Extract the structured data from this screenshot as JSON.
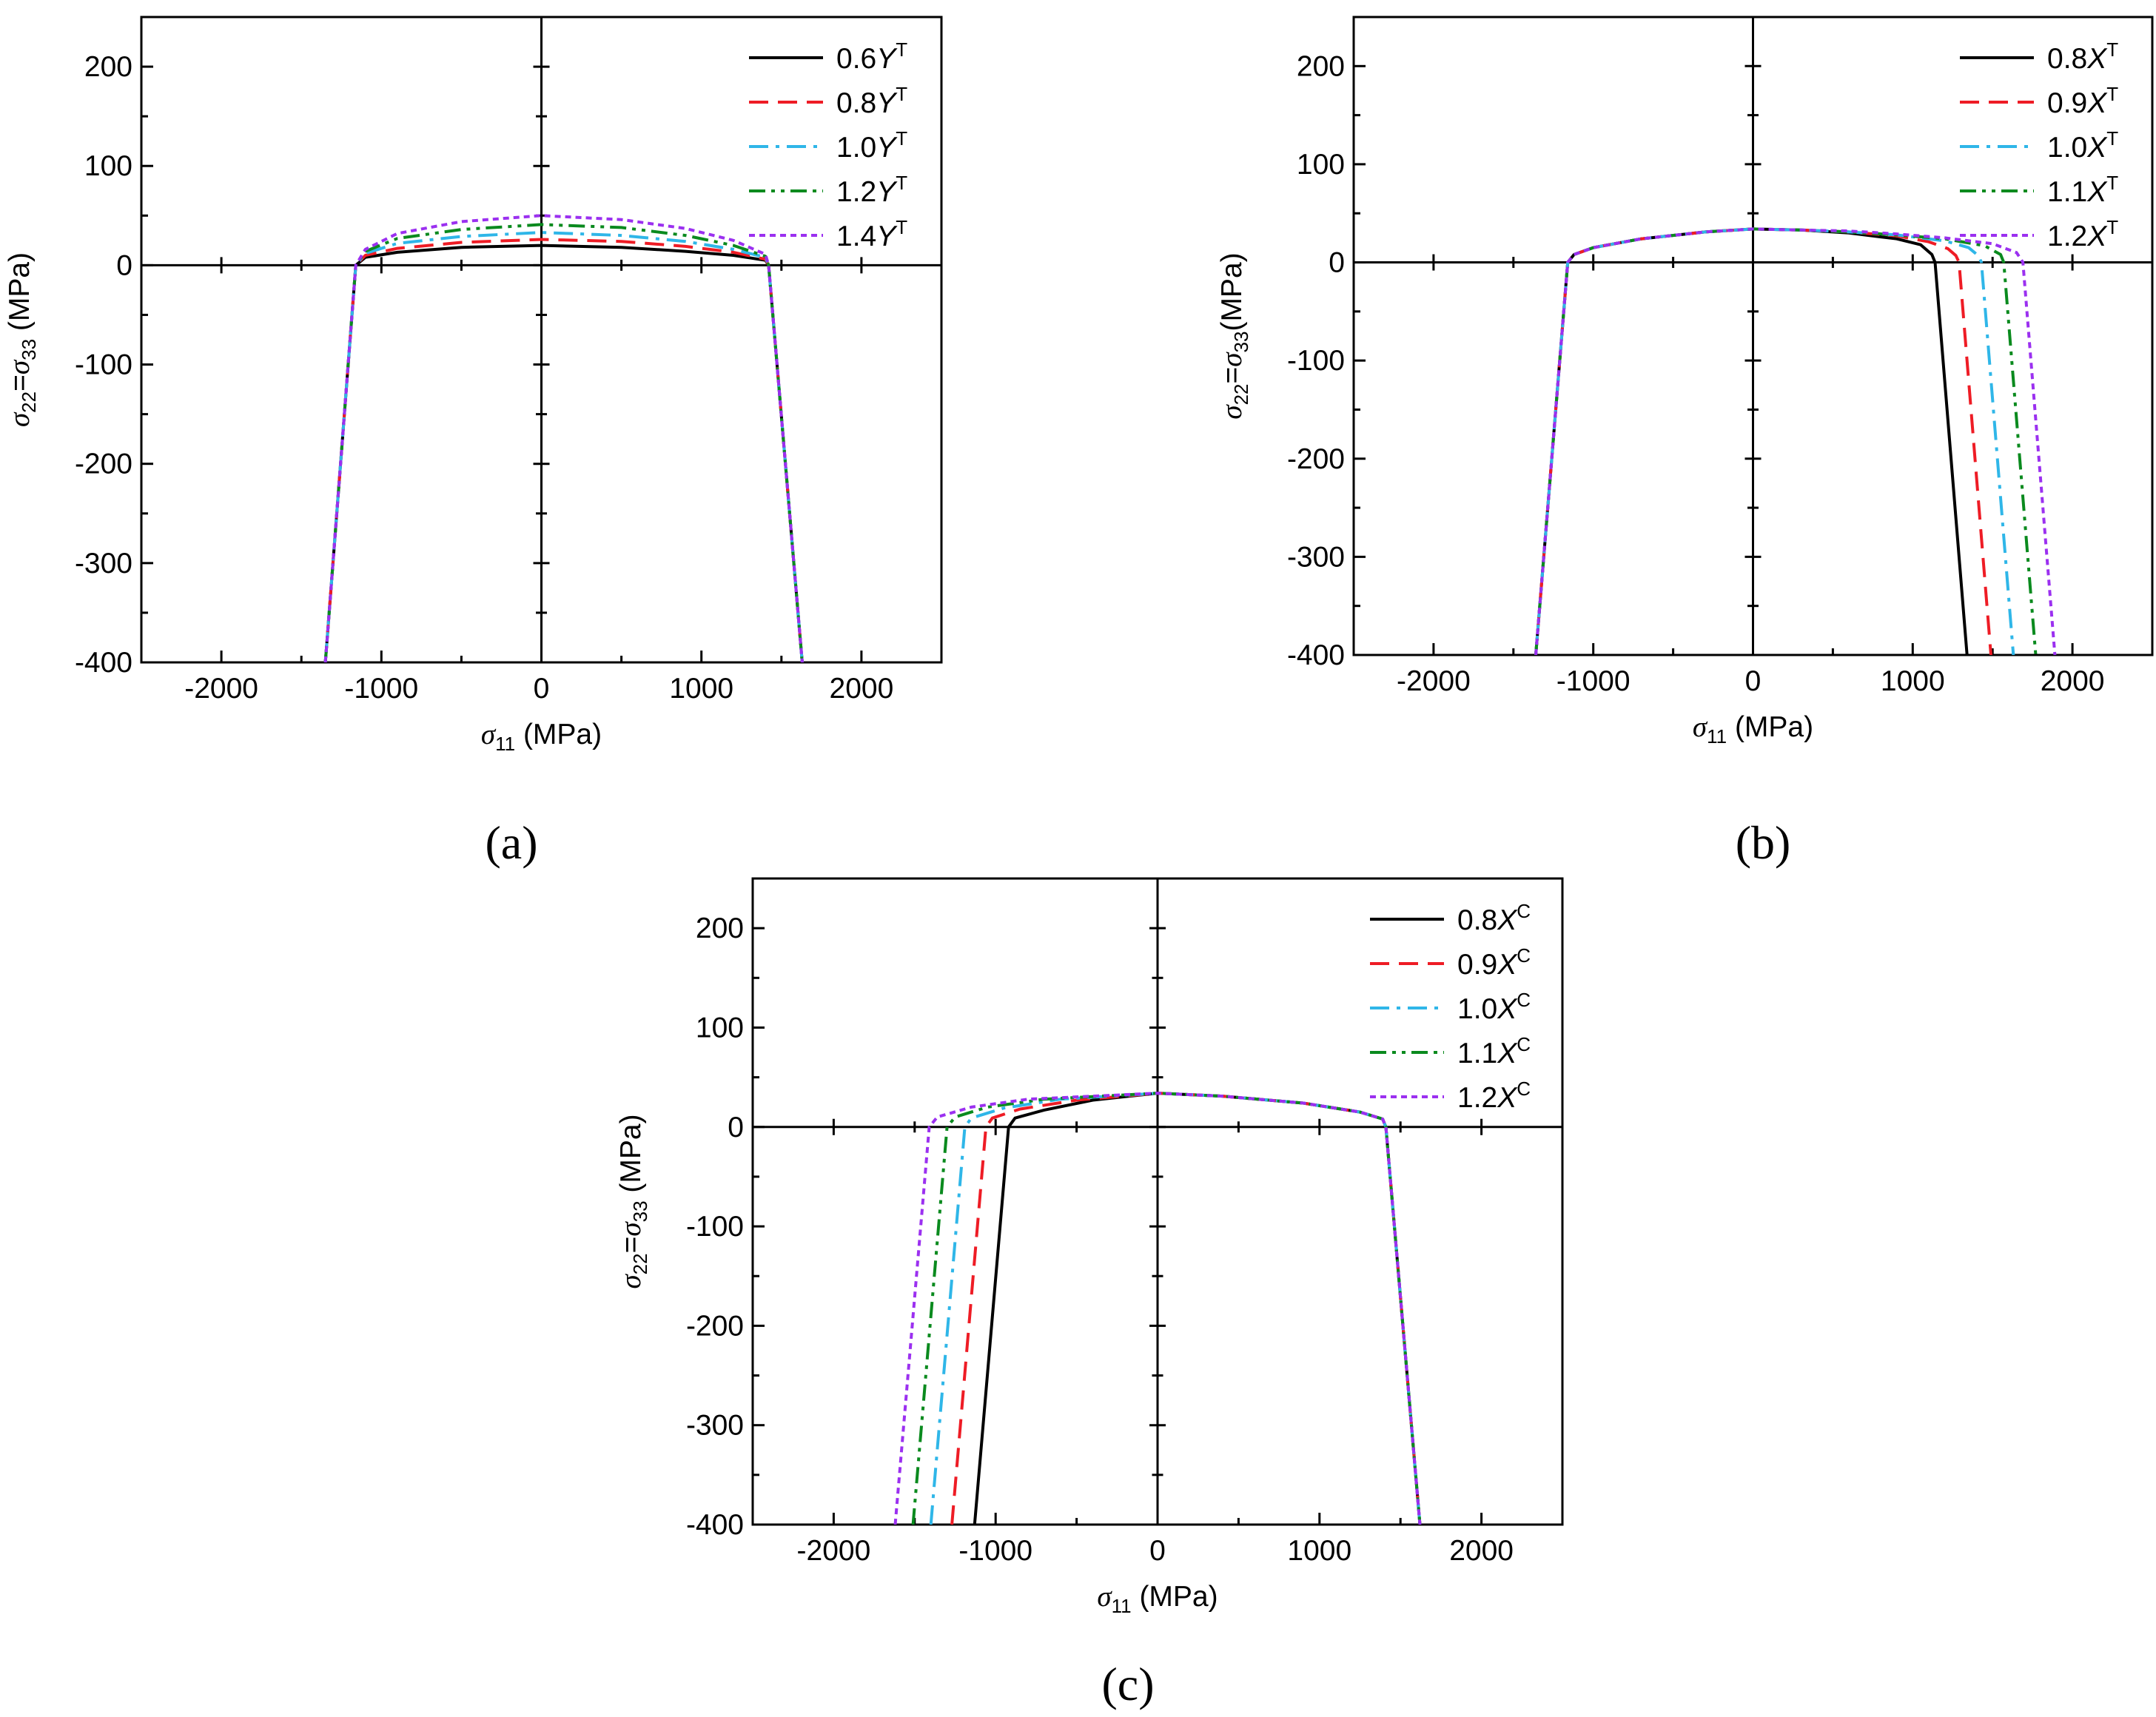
{
  "figure": {
    "colors": {
      "black": "#000000",
      "red": "#ee1c25",
      "cyan": "#2fb6e8",
      "green": "#0a8a1e",
      "purple": "#9b30f0"
    }
  },
  "chart_data": [
    {
      "id": "a",
      "type": "line",
      "caption": "(a)",
      "xlabel": {
        "sym": "σ",
        "sub": "11",
        "unit": " (MPa)"
      },
      "ylabel": {
        "s1": "σ",
        "sub1": "22",
        "eq": "=",
        "s2": "σ",
        "sub2": "33",
        "unit": " (MPa)"
      },
      "xlim": [
        -2500,
        2500
      ],
      "ylim": [
        -400,
        250
      ],
      "xticks": [
        -2000,
        -1000,
        0,
        1000,
        2000
      ],
      "xtick_labels": [
        "-2000",
        "-1000",
        "0",
        "1000",
        "2000"
      ],
      "yticks": [
        -400,
        -300,
        -200,
        -100,
        0,
        100,
        200
      ],
      "ytick_labels": [
        "-400",
        "-300",
        "-200",
        "-100",
        "0",
        "100",
        "200"
      ],
      "legend_position": "top-right",
      "series": [
        {
          "name": "0.6Y^T",
          "coef": "0.6",
          "letter": "Y",
          "sup": "T",
          "style": "solid",
          "color": "#000000",
          "points": [
            [
              -1350,
              -400
            ],
            [
              -1160,
              0
            ],
            [
              -1100,
              8
            ],
            [
              -900,
              13
            ],
            [
              -500,
              18
            ],
            [
              0,
              20
            ],
            [
              500,
              18
            ],
            [
              900,
              14
            ],
            [
              1200,
              10
            ],
            [
              1400,
              5
            ],
            [
              1420,
              0
            ],
            [
              1630,
              -400
            ]
          ]
        },
        {
          "name": "0.8Y^T",
          "coef": "0.8",
          "letter": "Y",
          "sup": "T",
          "style": "dash",
          "color": "#ee1c25",
          "points": [
            [
              -1350,
              -400
            ],
            [
              -1160,
              0
            ],
            [
              -1100,
              10
            ],
            [
              -900,
              17
            ],
            [
              -500,
              23
            ],
            [
              0,
              26
            ],
            [
              500,
              24
            ],
            [
              900,
              19
            ],
            [
              1200,
              13
            ],
            [
              1400,
              6
            ],
            [
              1420,
              0
            ],
            [
              1630,
              -400
            ]
          ]
        },
        {
          "name": "1.0Y^T",
          "coef": "1.0",
          "letter": "Y",
          "sup": "T",
          "style": "dashdot",
          "color": "#2fb6e8",
          "points": [
            [
              -1350,
              -400
            ],
            [
              -1160,
              0
            ],
            [
              -1100,
              12
            ],
            [
              -900,
              22
            ],
            [
              -500,
              29
            ],
            [
              0,
              33
            ],
            [
              500,
              30
            ],
            [
              900,
              24
            ],
            [
              1200,
              16
            ],
            [
              1400,
              8
            ],
            [
              1420,
              0
            ],
            [
              1630,
              -400
            ]
          ]
        },
        {
          "name": "1.2Y^T",
          "coef": "1.2",
          "letter": "Y",
          "sup": "T",
          "style": "dashdotdot",
          "color": "#0a8a1e",
          "points": [
            [
              -1350,
              -400
            ],
            [
              -1160,
              0
            ],
            [
              -1100,
              14
            ],
            [
              -900,
              27
            ],
            [
              -500,
              36
            ],
            [
              0,
              41
            ],
            [
              500,
              38
            ],
            [
              900,
              30
            ],
            [
              1200,
              20
            ],
            [
              1400,
              9
            ],
            [
              1420,
              0
            ],
            [
              1630,
              -400
            ]
          ]
        },
        {
          "name": "1.4Y^T",
          "coef": "1.4",
          "letter": "Y",
          "sup": "T",
          "style": "dot",
          "color": "#9b30f0",
          "points": [
            [
              -1350,
              -400
            ],
            [
              -1160,
              0
            ],
            [
              -1100,
              16
            ],
            [
              -900,
              32
            ],
            [
              -500,
              44
            ],
            [
              0,
              50
            ],
            [
              500,
              46
            ],
            [
              900,
              37
            ],
            [
              1200,
              25
            ],
            [
              1400,
              11
            ],
            [
              1420,
              0
            ],
            [
              1630,
              -400
            ]
          ]
        }
      ]
    },
    {
      "id": "b",
      "type": "line",
      "caption": "(b)",
      "xlabel": {
        "sym": "σ",
        "sub": "11",
        "unit": " (MPa)"
      },
      "ylabel": {
        "s1": "σ",
        "sub1": "22",
        "eq": "=",
        "s2": "σ",
        "sub2": "33",
        "unit": "(MPa)"
      },
      "xlim": [
        -2500,
        2500
      ],
      "ylim": [
        -400,
        250
      ],
      "xticks": [
        -2000,
        -1000,
        0,
        1000,
        2000
      ],
      "xtick_labels": [
        "-2000",
        "-1000",
        "0",
        "1000",
        "2000"
      ],
      "yticks": [
        -400,
        -300,
        -200,
        -100,
        0,
        100,
        200
      ],
      "ytick_labels": [
        "-400",
        "-300",
        "-200",
        "-100",
        "0",
        "100",
        "200"
      ],
      "legend_position": "top-right",
      "series": [
        {
          "name": "0.8X^T",
          "coef": "0.8",
          "letter": "X",
          "sup": "T",
          "style": "solid",
          "color": "#000000",
          "points": [
            [
              -1360,
              -400
            ],
            [
              -1160,
              0
            ],
            [
              -1120,
              8
            ],
            [
              -1000,
              15
            ],
            [
              -700,
              24
            ],
            [
              -300,
              31
            ],
            [
              0,
              34
            ],
            [
              300,
              33
            ],
            [
              600,
              30
            ],
            [
              900,
              24
            ],
            [
              1050,
              18
            ],
            [
              1120,
              8
            ],
            [
              1140,
              0
            ],
            [
              1340,
              -400
            ]
          ]
        },
        {
          "name": "0.9X^T",
          "coef": "0.9",
          "letter": "X",
          "sup": "T",
          "style": "dash",
          "color": "#ee1c25",
          "points": [
            [
              -1360,
              -400
            ],
            [
              -1160,
              0
            ],
            [
              -1120,
              8
            ],
            [
              -1000,
              15
            ],
            [
              -700,
              24
            ],
            [
              -300,
              31
            ],
            [
              0,
              34
            ],
            [
              300,
              33
            ],
            [
              600,
              31
            ],
            [
              900,
              27
            ],
            [
              1100,
              21
            ],
            [
              1220,
              14
            ],
            [
              1270,
              7
            ],
            [
              1290,
              0
            ],
            [
              1490,
              -400
            ]
          ]
        },
        {
          "name": "1.0X^T",
          "coef": "1.0",
          "letter": "X",
          "sup": "T",
          "style": "dashdot",
          "color": "#2fb6e8",
          "points": [
            [
              -1360,
              -400
            ],
            [
              -1160,
              0
            ],
            [
              -1120,
              8
            ],
            [
              -1000,
              15
            ],
            [
              -700,
              24
            ],
            [
              -300,
              31
            ],
            [
              0,
              34
            ],
            [
              300,
              33
            ],
            [
              600,
              31
            ],
            [
              900,
              28
            ],
            [
              1200,
              22
            ],
            [
              1350,
              15
            ],
            [
              1410,
              7
            ],
            [
              1430,
              0
            ],
            [
              1630,
              -400
            ]
          ]
        },
        {
          "name": "1.1X^T",
          "coef": "1.1",
          "letter": "X",
          "sup": "T",
          "style": "dashdotdot",
          "color": "#0a8a1e",
          "points": [
            [
              -1360,
              -400
            ],
            [
              -1160,
              0
            ],
            [
              -1120,
              8
            ],
            [
              -1000,
              15
            ],
            [
              -700,
              24
            ],
            [
              -300,
              31
            ],
            [
              0,
              34
            ],
            [
              300,
              33
            ],
            [
              600,
              31
            ],
            [
              900,
              28
            ],
            [
              1200,
              24
            ],
            [
              1450,
              17
            ],
            [
              1550,
              8
            ],
            [
              1570,
              0
            ],
            [
              1770,
              -400
            ]
          ]
        },
        {
          "name": "1.2X^T",
          "coef": "1.2",
          "letter": "X",
          "sup": "T",
          "style": "dot",
          "color": "#9b30f0",
          "points": [
            [
              -1360,
              -400
            ],
            [
              -1160,
              0
            ],
            [
              -1120,
              8
            ],
            [
              -1000,
              15
            ],
            [
              -700,
              24
            ],
            [
              -300,
              31
            ],
            [
              0,
              34
            ],
            [
              300,
              33
            ],
            [
              600,
              32
            ],
            [
              900,
              29
            ],
            [
              1200,
              25
            ],
            [
              1500,
              19
            ],
            [
              1650,
              10
            ],
            [
              1690,
              0
            ],
            [
              1890,
              -400
            ]
          ]
        }
      ]
    },
    {
      "id": "c",
      "type": "line",
      "caption": "(c)",
      "xlabel": {
        "sym": "σ",
        "sub": "11",
        "unit": " (MPa)"
      },
      "ylabel": {
        "s1": "σ",
        "sub1": "22",
        "eq": "=",
        "s2": "σ",
        "sub2": "33",
        "unit": " (MPa)"
      },
      "xlim": [
        -2500,
        2500
      ],
      "ylim": [
        -400,
        250
      ],
      "xticks": [
        -2000,
        -1000,
        0,
        1000,
        2000
      ],
      "xtick_labels": [
        "-2000",
        "-1000",
        "0",
        "1000",
        "2000"
      ],
      "yticks": [
        -400,
        -300,
        -200,
        -100,
        0,
        100,
        200
      ],
      "ytick_labels": [
        "-400",
        "-300",
        "-200",
        "-100",
        "0",
        "100",
        "200"
      ],
      "legend_position": "top-right",
      "series": [
        {
          "name": "0.8X^C",
          "coef": "0.8",
          "letter": "X",
          "sup": "C",
          "style": "solid",
          "color": "#000000",
          "points": [
            [
              -1130,
              -400
            ],
            [
              -920,
              0
            ],
            [
              -880,
              9
            ],
            [
              -700,
              17
            ],
            [
              -400,
              27
            ],
            [
              0,
              34
            ],
            [
              400,
              31
            ],
            [
              900,
              24
            ],
            [
              1250,
              15
            ],
            [
              1390,
              8
            ],
            [
              1410,
              0
            ],
            [
              1620,
              -400
            ]
          ]
        },
        {
          "name": "0.9X^C",
          "coef": "0.9",
          "letter": "X",
          "sup": "C",
          "style": "dash",
          "color": "#ee1c25",
          "points": [
            [
              -1270,
              -400
            ],
            [
              -1060,
              0
            ],
            [
              -1020,
              9
            ],
            [
              -850,
              18
            ],
            [
              -500,
              27
            ],
            [
              0,
              34
            ],
            [
              400,
              31
            ],
            [
              900,
              24
            ],
            [
              1250,
              15
            ],
            [
              1390,
              8
            ],
            [
              1410,
              0
            ],
            [
              1620,
              -400
            ]
          ]
        },
        {
          "name": "1.0X^C",
          "coef": "1.0",
          "letter": "X",
          "sup": "C",
          "style": "dashdot",
          "color": "#2fb6e8",
          "points": [
            [
              -1400,
              -400
            ],
            [
              -1190,
              0
            ],
            [
              -1150,
              9
            ],
            [
              -950,
              19
            ],
            [
              -600,
              28
            ],
            [
              0,
              34
            ],
            [
              400,
              31
            ],
            [
              900,
              24
            ],
            [
              1250,
              15
            ],
            [
              1390,
              8
            ],
            [
              1410,
              0
            ],
            [
              1620,
              -400
            ]
          ]
        },
        {
          "name": "1.1X^C",
          "coef": "1.1",
          "letter": "X",
          "sup": "C",
          "style": "dashdotdot",
          "color": "#0a8a1e",
          "points": [
            [
              -1510,
              -400
            ],
            [
              -1300,
              0
            ],
            [
              -1250,
              10
            ],
            [
              -1050,
              20
            ],
            [
              -700,
              28
            ],
            [
              0,
              34
            ],
            [
              400,
              31
            ],
            [
              900,
              24
            ],
            [
              1250,
              15
            ],
            [
              1390,
              8
            ],
            [
              1410,
              0
            ],
            [
              1620,
              -400
            ]
          ]
        },
        {
          "name": "1.2X^C",
          "coef": "1.2",
          "letter": "X",
          "sup": "C",
          "style": "dot",
          "color": "#9b30f0",
          "points": [
            [
              -1620,
              -400
            ],
            [
              -1410,
              0
            ],
            [
              -1360,
              10
            ],
            [
              -1150,
              20
            ],
            [
              -800,
              28
            ],
            [
              0,
              34
            ],
            [
              400,
              31
            ],
            [
              900,
              24
            ],
            [
              1250,
              15
            ],
            [
              1390,
              8
            ],
            [
              1410,
              0
            ],
            [
              1620,
              -400
            ]
          ]
        }
      ]
    }
  ]
}
